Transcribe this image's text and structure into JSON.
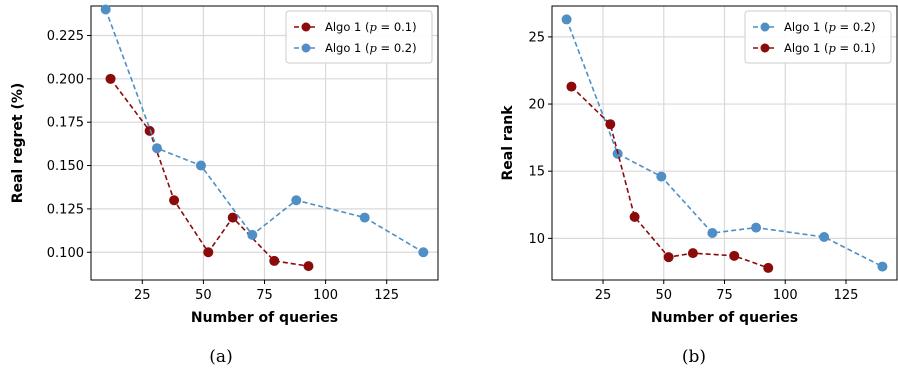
{
  "figure": {
    "captions": [
      "(a)",
      "(b)"
    ]
  },
  "colors": {
    "algo_p01": "#8b0a0a",
    "algo_p02": "#4f8fc6",
    "grid": "#d9d9d9",
    "axis": "#000000"
  },
  "chart_data": [
    {
      "type": "line",
      "title": "",
      "xlabel": "Number of queries",
      "ylabel": "Real regret (%)",
      "xlim": [
        4,
        146
      ],
      "ylim": [
        0.084,
        0.242
      ],
      "xticks": [
        25,
        50,
        75,
        100,
        125
      ],
      "yticks": [
        0.1,
        0.125,
        0.15,
        0.175,
        0.2,
        0.225
      ],
      "ytick_labels": [
        "0.100",
        "0.125",
        "0.150",
        "0.175",
        "0.200",
        "0.225"
      ],
      "grid": true,
      "legend_position": "top-right",
      "series": [
        {
          "name": "Algo 1 (p = 0.1)",
          "legend_prefix": "Algo 1 (",
          "legend_var": "p",
          "legend_suffix": " = 0.1)",
          "color_key": "algo_p01",
          "x": [
            12,
            28,
            38,
            52,
            62,
            79,
            93
          ],
          "y": [
            0.2,
            0.17,
            0.13,
            0.1,
            0.12,
            0.095,
            0.092
          ]
        },
        {
          "name": "Algo 1 (p = 0.2)",
          "legend_prefix": "Algo 1 (",
          "legend_var": "p",
          "legend_suffix": " = 0.2)",
          "color_key": "algo_p02",
          "x": [
            10,
            31,
            49,
            70,
            88,
            116,
            140
          ],
          "y": [
            0.24,
            0.16,
            0.15,
            0.11,
            0.13,
            0.12,
            0.1
          ]
        }
      ]
    },
    {
      "type": "line",
      "title": "",
      "xlabel": "Number of queries",
      "ylabel": "Real rank",
      "xlim": [
        4,
        146
      ],
      "ylim": [
        6.9,
        27.3
      ],
      "xticks": [
        25,
        50,
        75,
        100,
        125
      ],
      "yticks": [
        10,
        15,
        20,
        25
      ],
      "ytick_labels": [
        "10",
        "15",
        "20",
        "25"
      ],
      "grid": true,
      "legend_position": "top-right",
      "series": [
        {
          "name": "Algo 1 (p = 0.2)",
          "legend_prefix": "Algo 1 (",
          "legend_var": "p",
          "legend_suffix": " = 0.2)",
          "color_key": "algo_p02",
          "x": [
            10,
            31,
            49,
            70,
            88,
            116,
            140
          ],
          "y": [
            26.3,
            16.3,
            14.6,
            10.4,
            10.8,
            10.1,
            7.9
          ]
        },
        {
          "name": "Algo 1 (p = 0.1)",
          "legend_prefix": "Algo 1 (",
          "legend_var": "p",
          "legend_suffix": " = 0.1)",
          "color_key": "algo_p01",
          "x": [
            12,
            28,
            38,
            52,
            62,
            79,
            93
          ],
          "y": [
            21.3,
            18.5,
            11.6,
            8.6,
            8.9,
            8.7,
            7.8
          ]
        }
      ]
    }
  ]
}
